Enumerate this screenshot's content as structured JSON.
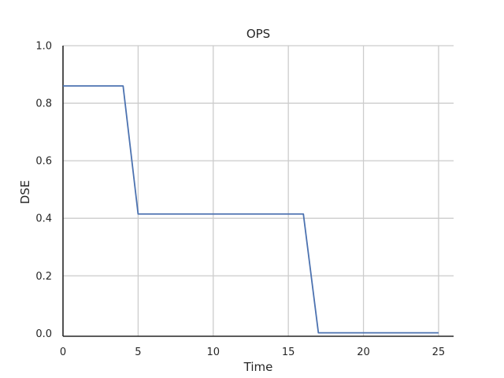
{
  "chart_data": {
    "type": "line",
    "title": "OPS",
    "xlabel": "Time",
    "ylabel": "DSE",
    "xlim": [
      0,
      26
    ],
    "ylim": [
      0.0,
      1.0
    ],
    "xticks": [
      "0",
      "5",
      "10",
      "15",
      "20",
      "25"
    ],
    "xtick_values": [
      0,
      5,
      10,
      15,
      20,
      25
    ],
    "yticks": [
      "0.0",
      "0.2",
      "0.4",
      "0.6",
      "0.8",
      "1.0"
    ],
    "ytick_values": [
      0.0,
      0.2,
      0.4,
      0.6,
      0.8,
      1.0
    ],
    "grid": true,
    "series": [
      {
        "color": "#4c72b0",
        "x": [
          0,
          1,
          2,
          3,
          4,
          5,
          6,
          7,
          8,
          9,
          10,
          11,
          12,
          13,
          14,
          15,
          16,
          17,
          18,
          19,
          20,
          21,
          22,
          23,
          24,
          25
        ],
        "y": [
          0.86,
          0.86,
          0.86,
          0.86,
          0.86,
          0.415,
          0.415,
          0.415,
          0.415,
          0.415,
          0.415,
          0.415,
          0.415,
          0.415,
          0.415,
          0.415,
          0.415,
          0.002,
          0.002,
          0.002,
          0.002,
          0.002,
          0.002,
          0.002,
          0.002,
          0.002
        ]
      }
    ]
  }
}
